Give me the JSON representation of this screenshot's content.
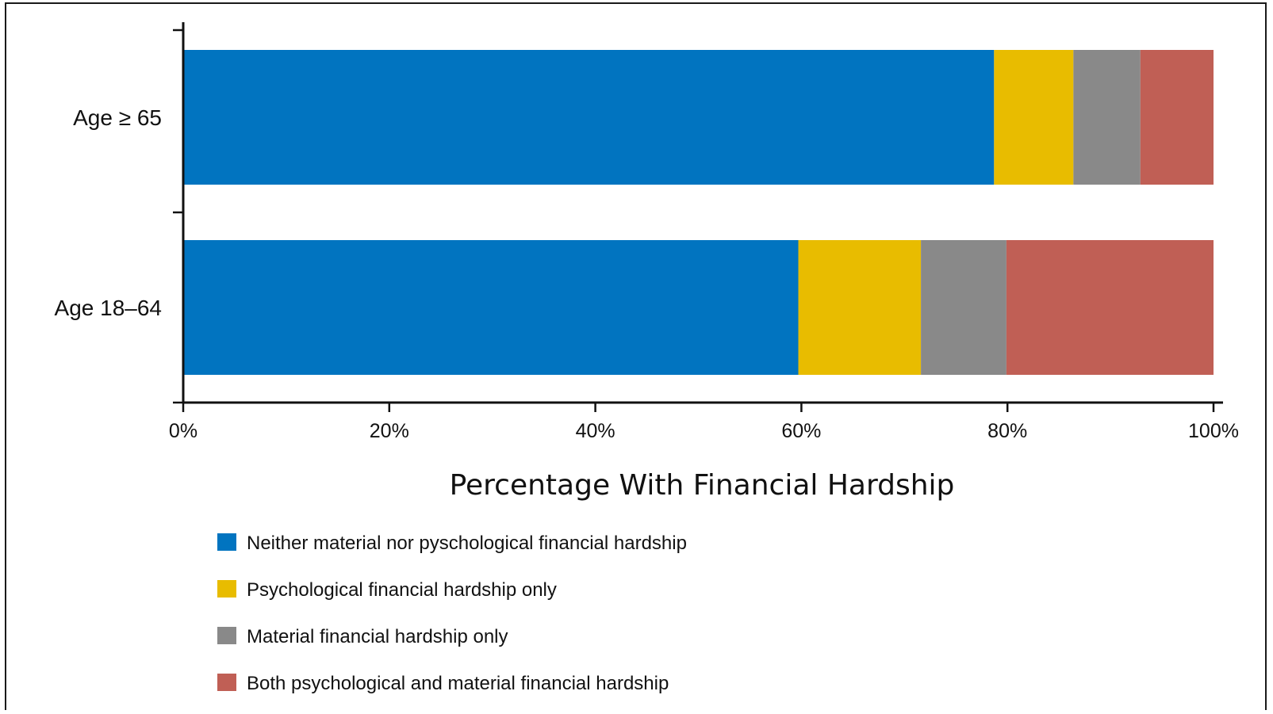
{
  "chart_data": {
    "type": "bar",
    "orientation": "horizontal",
    "stacked": true,
    "categories": [
      "Age ≥ 65",
      "Age 18–64"
    ],
    "series": [
      {
        "name": "Neither material nor pyschological financial hardship",
        "color": "#0174C0",
        "values": [
          78.7,
          59.7
        ]
      },
      {
        "name": "Psychological financial hardship only",
        "color": "#E8BC00",
        "values": [
          7.7,
          11.9
        ]
      },
      {
        "name": "Material financial hardship only",
        "color": "#898989",
        "values": [
          6.5,
          8.3
        ]
      },
      {
        "name": "Both psychological and material financial hardship",
        "color": "#C05F55",
        "values": [
          7.1,
          20.1
        ]
      }
    ],
    "xlabel": "Percentage With Financial Hardship",
    "xlim": [
      0,
      100
    ],
    "xticks": [
      "0%",
      "20%",
      "40%",
      "60%",
      "80%",
      "100%"
    ],
    "grid": false,
    "legend": "bottom"
  }
}
